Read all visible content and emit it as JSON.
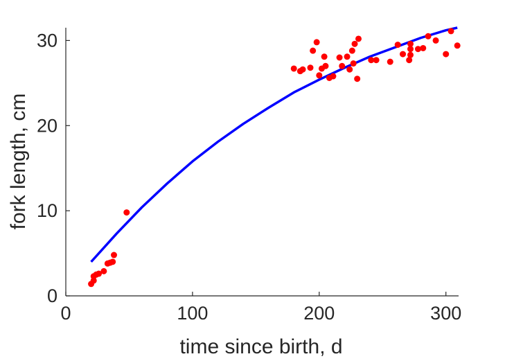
{
  "chart_data": {
    "type": "scatter",
    "title": "",
    "xlabel": "time since birth, d",
    "ylabel": "fork length, cm",
    "xlim": [
      0,
      310
    ],
    "ylim": [
      0,
      31.5
    ],
    "xticks": [
      0,
      100,
      200,
      300
    ],
    "yticks": [
      0,
      10,
      20,
      30
    ],
    "grid": false,
    "legend": "none",
    "box": "left-bottom",
    "colors": {
      "points": "#ff0000",
      "fit": "#0000ff",
      "axis": "#262626"
    },
    "series": [
      {
        "type": "scatter",
        "points": [
          [
            20,
            1.4
          ],
          [
            22,
            1.8
          ],
          [
            22,
            2.3
          ],
          [
            24,
            2.5
          ],
          [
            26,
            2.6
          ],
          [
            30,
            2.9
          ],
          [
            33,
            3.8
          ],
          [
            35,
            3.9
          ],
          [
            37,
            4.0
          ],
          [
            38,
            4.8
          ],
          [
            48,
            9.8
          ],
          [
            180,
            26.7
          ],
          [
            185,
            26.4
          ],
          [
            187,
            26.6
          ],
          [
            193,
            26.8
          ],
          [
            195,
            28.8
          ],
          [
            198,
            29.8
          ],
          [
            200,
            25.9
          ],
          [
            202,
            26.7
          ],
          [
            204,
            28.1
          ],
          [
            205,
            27.0
          ],
          [
            208,
            25.6
          ],
          [
            211,
            25.8
          ],
          [
            216,
            28.0
          ],
          [
            218,
            27.0
          ],
          [
            222,
            28.1
          ],
          [
            224,
            26.6
          ],
          [
            226,
            28.8
          ],
          [
            227,
            27.3
          ],
          [
            228,
            29.6
          ],
          [
            230,
            25.5
          ],
          [
            231,
            30.2
          ],
          [
            241,
            27.7
          ],
          [
            245,
            27.7
          ],
          [
            256,
            27.5
          ],
          [
            262,
            29.5
          ],
          [
            266,
            28.4
          ],
          [
            271,
            27.7
          ],
          [
            272,
            28.3
          ],
          [
            272,
            29.0
          ],
          [
            272,
            29.6
          ],
          [
            278,
            29.0
          ],
          [
            282,
            29.1
          ],
          [
            286,
            30.5
          ],
          [
            292,
            30.0
          ],
          [
            300,
            28.4
          ],
          [
            304,
            31.1
          ],
          [
            309,
            29.4
          ]
        ]
      },
      {
        "type": "line",
        "x": [
          20,
          40,
          60,
          80,
          100,
          120,
          140,
          160,
          180,
          200,
          220,
          240,
          260,
          280,
          300,
          309
        ],
        "y": [
          4.0,
          7.3,
          10.4,
          13.2,
          15.8,
          18.1,
          20.2,
          22.1,
          23.9,
          25.4,
          26.8,
          28.1,
          29.2,
          30.3,
          31.2,
          31.5
        ]
      }
    ]
  }
}
